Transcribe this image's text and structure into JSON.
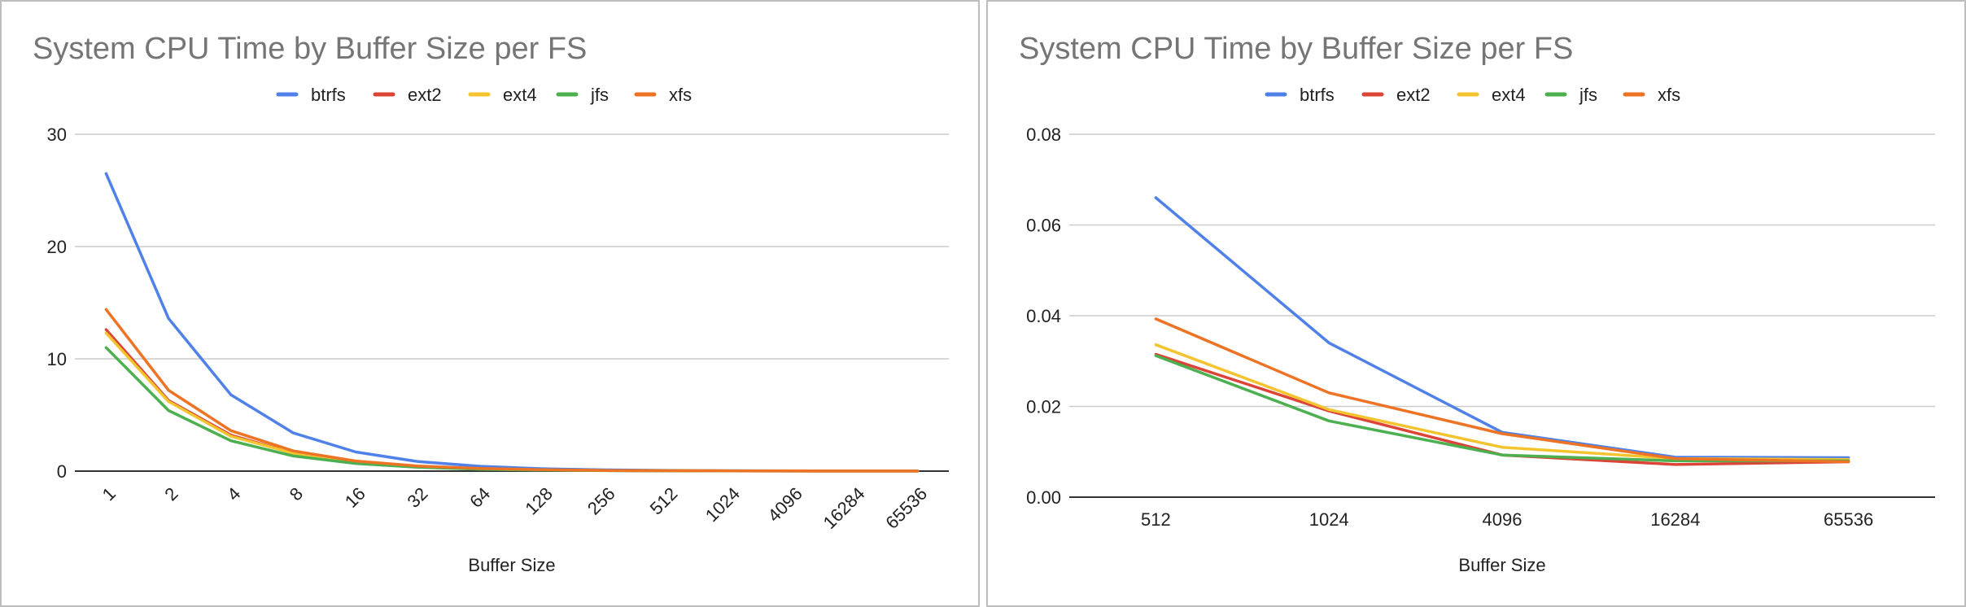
{
  "chart_data": [
    {
      "type": "line",
      "title": "System CPU Time by Buffer Size per FS",
      "xlabel": "Buffer Size",
      "ylabel": "",
      "categories": [
        "1",
        "2",
        "4",
        "8",
        "16",
        "32",
        "64",
        "128",
        "256",
        "512",
        "1024",
        "4096",
        "16284",
        "65536"
      ],
      "y_ticks": [
        "0",
        "10",
        "20",
        "30"
      ],
      "ylim": [
        0,
        30
      ],
      "grid": true,
      "legend_position": "top",
      "series": [
        {
          "name": "btrfs",
          "color": "#4f81e8",
          "values": [
            26.5,
            13.6,
            6.8,
            3.4,
            1.7,
            0.85,
            0.43,
            0.21,
            0.11,
            0.066,
            0.034,
            0.014,
            0.009,
            0.009
          ]
        },
        {
          "name": "ext2",
          "color": "#db4437",
          "values": [
            12.6,
            6.3,
            3.2,
            1.6,
            0.8,
            0.4,
            0.2,
            0.1,
            0.05,
            0.031,
            0.019,
            0.009,
            0.007,
            0.008
          ]
        },
        {
          "name": "ext4",
          "color": "#f4c430",
          "values": [
            12.3,
            6.2,
            3.1,
            1.6,
            0.8,
            0.4,
            0.2,
            0.1,
            0.05,
            0.034,
            0.019,
            0.011,
            0.008,
            0.008
          ]
        },
        {
          "name": "jfs",
          "color": "#4caf50",
          "values": [
            11.0,
            5.4,
            2.7,
            1.35,
            0.68,
            0.34,
            0.17,
            0.085,
            0.043,
            0.031,
            0.017,
            0.009,
            0.008,
            0.008
          ]
        },
        {
          "name": "xfs",
          "color": "#ed7325",
          "values": [
            14.4,
            7.2,
            3.6,
            1.8,
            0.9,
            0.45,
            0.23,
            0.12,
            0.06,
            0.039,
            0.023,
            0.014,
            0.008,
            0.008
          ]
        }
      ]
    },
    {
      "type": "line",
      "title": "System CPU Time by Buffer Size per FS",
      "xlabel": "Buffer Size",
      "ylabel": "",
      "categories": [
        "512",
        "1024",
        "4096",
        "16284",
        "65536"
      ],
      "y_ticks": [
        "0.00",
        "0.02",
        "0.04",
        "0.06",
        "0.08"
      ],
      "ylim": [
        0,
        0.08
      ],
      "grid": true,
      "legend_position": "top",
      "series": [
        {
          "name": "btrfs",
          "color": "#4f81e8",
          "values": [
            0.066,
            0.034,
            0.0143,
            0.0088,
            0.0087
          ]
        },
        {
          "name": "ext2",
          "color": "#db4437",
          "values": [
            0.0315,
            0.019,
            0.0093,
            0.0072,
            0.0078
          ]
        },
        {
          "name": "ext4",
          "color": "#f4c430",
          "values": [
            0.0336,
            0.0193,
            0.011,
            0.0085,
            0.0083
          ]
        },
        {
          "name": "jfs",
          "color": "#4caf50",
          "values": [
            0.0312,
            0.0168,
            0.0093,
            0.008,
            0.008
          ]
        },
        {
          "name": "xfs",
          "color": "#ed7325",
          "values": [
            0.0393,
            0.023,
            0.014,
            0.0085,
            0.0078
          ]
        }
      ]
    }
  ]
}
